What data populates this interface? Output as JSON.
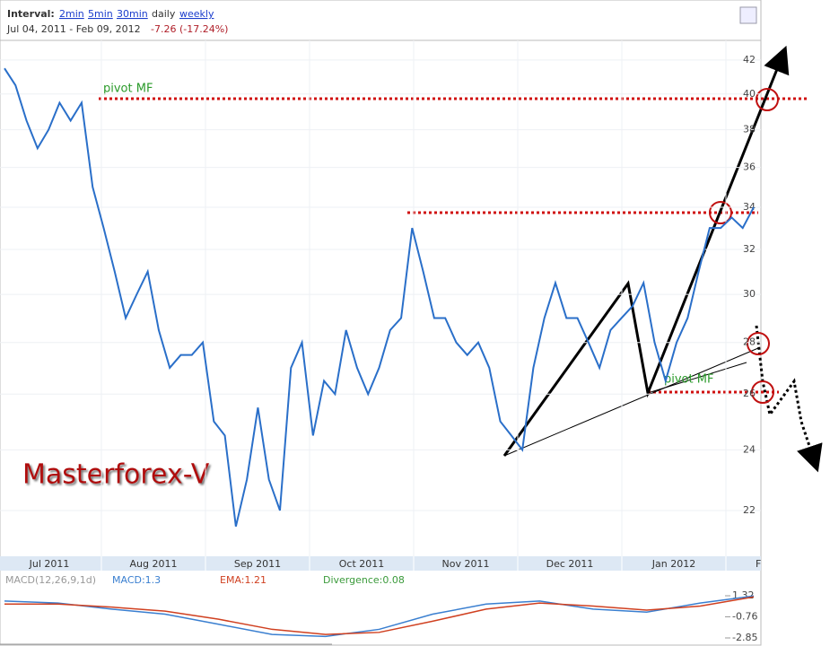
{
  "header": {
    "interval_label": "Interval:",
    "links": [
      "2min",
      "5min",
      "30min",
      "daily",
      "weekly"
    ],
    "range": "Jul 04, 2011 - Feb 09, 2012",
    "change": "-7.26 (-17.24%)"
  },
  "chart_data": [
    {
      "type": "line",
      "color": "#2a6fc9",
      "log_scale": true,
      "grid": true,
      "months": [
        "Jul 2011",
        "Aug 2011",
        "Sep 2011",
        "Oct 2011",
        "Nov 2011",
        "Dec 2011",
        "Jan 2012",
        "F"
      ],
      "values": [
        41.5,
        40.5,
        38.5,
        37,
        38,
        39.5,
        38.5,
        39.5,
        35,
        33,
        31,
        29,
        30,
        31,
        28.5,
        27,
        27.5,
        27.5,
        28,
        25,
        24.5,
        21.5,
        23,
        25.5,
        23,
        22,
        27,
        28,
        24.5,
        26.5,
        26,
        28.5,
        27,
        26,
        27,
        28.5,
        29,
        33,
        31,
        29,
        29,
        28,
        27.5,
        28,
        27,
        25,
        24.5,
        24,
        27,
        29,
        30.5,
        29,
        29,
        28,
        27,
        28.5,
        29,
        29.5,
        30.5,
        28,
        26.5,
        28,
        29,
        31,
        33,
        33,
        33.5,
        33,
        34
      ],
      "ylim": [
        20.6,
        43.2
      ],
      "yticks": [
        22,
        24,
        26,
        28,
        30,
        32,
        34,
        36,
        38,
        40,
        42
      ],
      "annotations": [
        "pivot MF",
        "pivot MF",
        "Masterforex-V"
      ]
    },
    {
      "type": "line",
      "title": "MACD(12,26,9,1d)",
      "divergence": "Divergence:0.08",
      "series": [
        {
          "name": "MACD:1.3",
          "color": "#3a7fd0",
          "values": [
            0.8,
            0.6,
            0.0,
            -0.5,
            -1.5,
            -2.5,
            -2.7,
            -2.0,
            -0.5,
            0.5,
            0.8,
            0.0,
            -0.3,
            0.6,
            1.3
          ]
        },
        {
          "name": "EMA:1.21",
          "color": "#d04020",
          "values": [
            0.5,
            0.5,
            0.2,
            -0.2,
            -1.0,
            -2.0,
            -2.5,
            -2.3,
            -1.2,
            0.0,
            0.6,
            0.3,
            -0.1,
            0.3,
            1.21
          ]
        }
      ],
      "ylim": [
        -3.47,
        2.12
      ],
      "yticks": [
        1.32,
        -0.76,
        -2.85
      ]
    }
  ]
}
